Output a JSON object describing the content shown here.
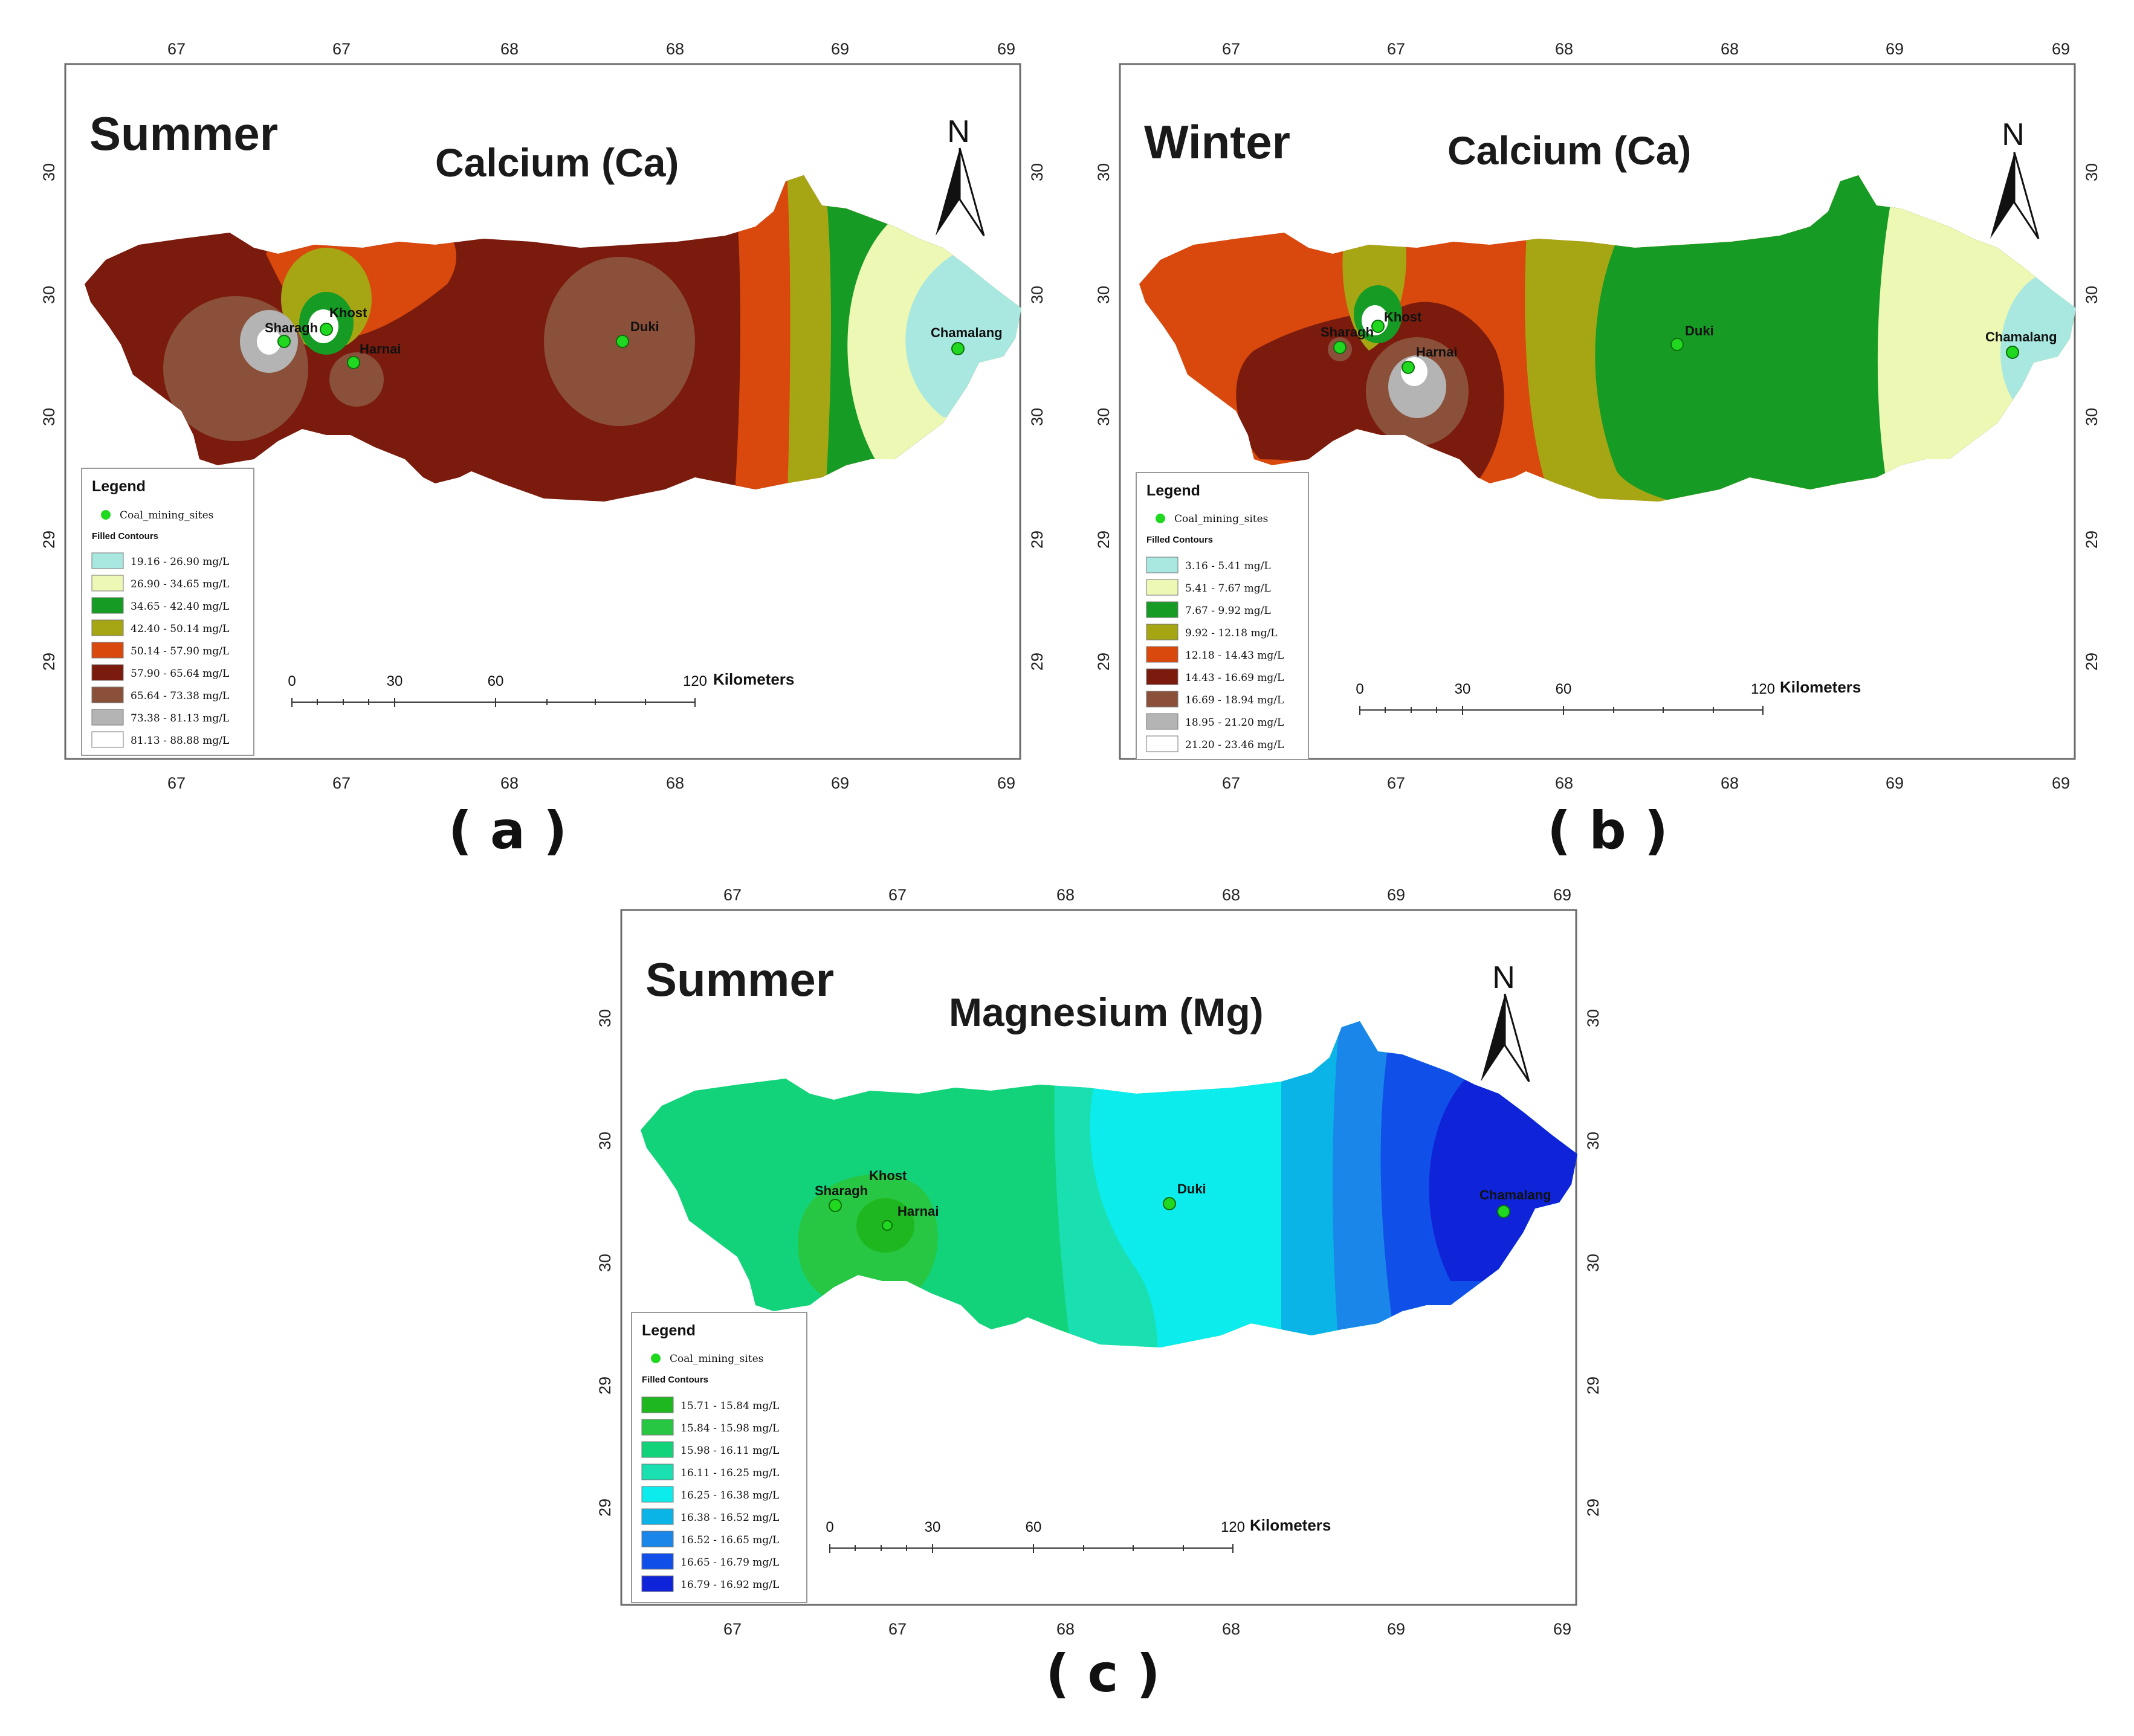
{
  "panels": [
    {
      "id": "a",
      "season": "Summer",
      "parameter": "Calcium (Ca)",
      "caption": "( a )",
      "top_ticks": [
        "67",
        "67",
        "68",
        "68",
        "69",
        "69"
      ],
      "bottom_ticks": [
        "67",
        "67",
        "68",
        "68",
        "69",
        "69"
      ],
      "left_ticks": [
        "30",
        "30",
        "30",
        "29",
        "29"
      ],
      "right_ticks": [
        "30",
        "30",
        "30",
        "29",
        "29"
      ],
      "legend": {
        "title": "Legend",
        "point_label": "Coal_mining_sites",
        "contours_title": "Filled Contours",
        "items": [
          {
            "label": "19.16 - 26.90 mg/L",
            "color": "#a8e8e0"
          },
          {
            "label": "26.90 - 34.65 mg/L",
            "color": "#ecf8b4"
          },
          {
            "label": "34.65 - 42.40 mg/L",
            "color": "#169b24"
          },
          {
            "label": "42.40 - 50.14 mg/L",
            "color": "#a6a615"
          },
          {
            "label": "50.14 - 57.90 mg/L",
            "color": "#d9480c"
          },
          {
            "label": "57.90 - 65.64 mg/L",
            "color": "#7a1b0d"
          },
          {
            "label": "65.64 - 73.38 mg/L",
            "color": "#8b5039"
          },
          {
            "label": "73.38 - 81.13 mg/L",
            "color": "#b4b4b4"
          },
          {
            "label": "81.13 - 88.88 mg/L",
            "color": "#ffffff"
          }
        ]
      },
      "sites": [
        "Sharagh",
        "Khost",
        "Harnai",
        "Duki",
        "Chamalang"
      ],
      "scale": {
        "labels": [
          "0",
          "30",
          "60",
          "120"
        ],
        "unit": "Kilometers"
      },
      "north": "N"
    },
    {
      "id": "b",
      "season": "Winter",
      "parameter": "Calcium (Ca)",
      "caption": "( b )",
      "top_ticks": [
        "67",
        "67",
        "68",
        "68",
        "69",
        "69"
      ],
      "bottom_ticks": [
        "67",
        "67",
        "68",
        "68",
        "69",
        "69"
      ],
      "left_ticks": [
        "30",
        "30",
        "30",
        "29",
        "29"
      ],
      "right_ticks": [
        "30",
        "30",
        "30",
        "29",
        "29"
      ],
      "legend": {
        "title": "Legend",
        "point_label": "Coal_mining_sites",
        "contours_title": "Filled Contours",
        "items": [
          {
            "label": "3.16 - 5.41 mg/L",
            "color": "#a8e8e0"
          },
          {
            "label": "5.41 - 7.67 mg/L",
            "color": "#ecf8b4"
          },
          {
            "label": "7.67 - 9.92 mg/L",
            "color": "#169b24"
          },
          {
            "label": "9.92 - 12.18 mg/L",
            "color": "#a6a615"
          },
          {
            "label": "12.18 - 14.43 mg/L",
            "color": "#d9480c"
          },
          {
            "label": "14.43 - 16.69 mg/L",
            "color": "#7a1b0d"
          },
          {
            "label": "16.69 - 18.94 mg/L",
            "color": "#8b5039"
          },
          {
            "label": "18.95 - 21.20 mg/L",
            "color": "#b4b4b4"
          },
          {
            "label": "21.20 - 23.46 mg/L",
            "color": "#ffffff"
          }
        ]
      },
      "sites": [
        "Sharagh",
        "Khost",
        "Harnai",
        "Duki",
        "Chamalang"
      ],
      "scale": {
        "labels": [
          "0",
          "30",
          "60",
          "120"
        ],
        "unit": "Kilometers"
      },
      "north": "N"
    },
    {
      "id": "c",
      "season": "Summer",
      "parameter": "Magnesium (Mg)",
      "caption": "( c )",
      "top_ticks": [
        "67",
        "67",
        "68",
        "68",
        "69",
        "69"
      ],
      "bottom_ticks": [
        "67",
        "67",
        "68",
        "68",
        "69",
        "69"
      ],
      "left_ticks": [
        "30",
        "30",
        "30",
        "29",
        "29"
      ],
      "right_ticks": [
        "30",
        "30",
        "30",
        "29",
        "29"
      ],
      "legend": {
        "title": "Legend",
        "point_label": "Coal_mining_sites",
        "contours_title": "Filled Contours",
        "items": [
          {
            "label": "15.71 - 15.84  mg/L",
            "color": "#1fb71f"
          },
          {
            "label": "15.84 - 15.98  mg/L",
            "color": "#27c744"
          },
          {
            "label": "15.98 - 16.11  mg/L",
            "color": "#12d37a"
          },
          {
            "label": "16.11 - 16.25  mg/L",
            "color": "#1adfb0"
          },
          {
            "label": "16.25 - 16.38  mg/L",
            "color": "#0cecec"
          },
          {
            "label": "16.38 - 16.52  mg/L",
            "color": "#0ab4e6"
          },
          {
            "label": "16.52 - 16.65  mg/L",
            "color": "#1a86ea"
          },
          {
            "label": "16.65 - 16.79  mg/L",
            "color": "#1050e8"
          },
          {
            "label": "16.79 - 16.92  mg/L",
            "color": "#0f24d8"
          }
        ]
      },
      "sites": [
        "Sharagh",
        "Khost",
        "Harnai",
        "Duki",
        "Chamalang"
      ],
      "scale": {
        "labels": [
          "0",
          "30",
          "60",
          "120"
        ],
        "unit": "Kilometers"
      },
      "north": "N"
    }
  ]
}
